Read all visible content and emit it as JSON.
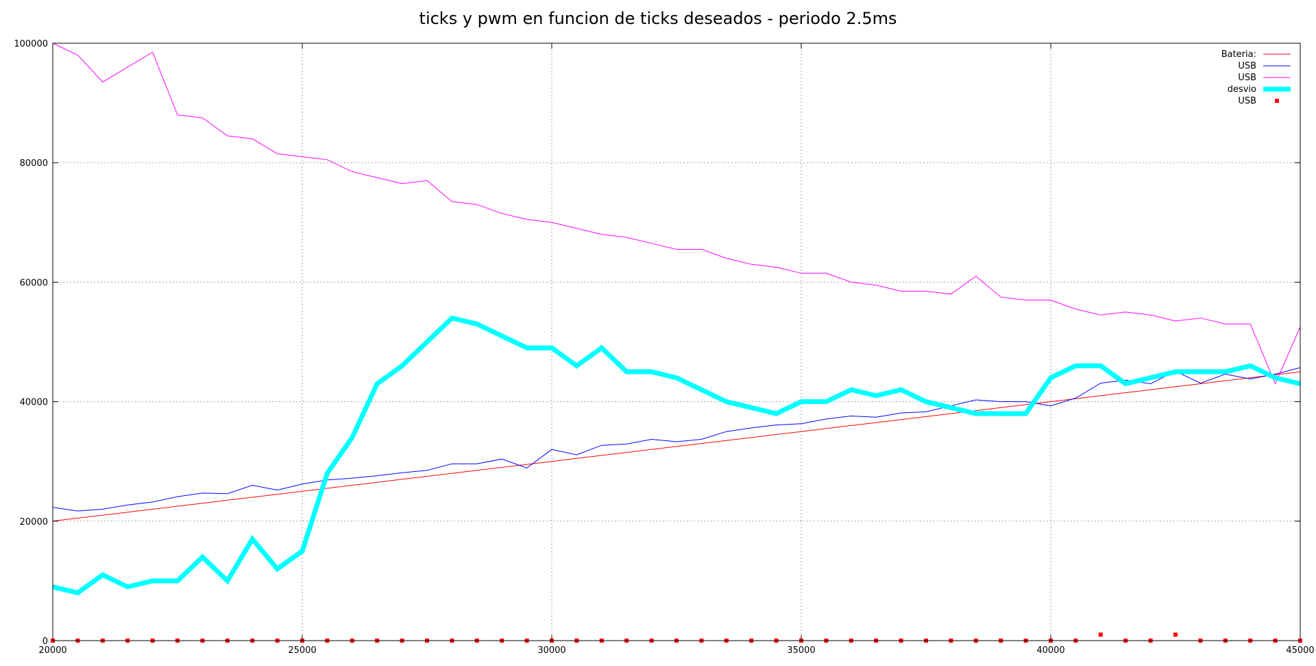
{
  "chart_data": {
    "type": "line",
    "title": "ticks y pwm en funcion de ticks deseados - periodo 2.5ms",
    "xlabel": "",
    "ylabel": "",
    "xlim": [
      20000,
      45000
    ],
    "ylim": [
      0,
      100000
    ],
    "x_ticks": [
      20000,
      25000,
      30000,
      35000,
      40000,
      45000
    ],
    "y_ticks": [
      0,
      20000,
      40000,
      60000,
      80000,
      100000
    ],
    "x_tick_labels": [
      "20000",
      "25000",
      "30000",
      "35000",
      "40000",
      "45000"
    ],
    "y_tick_labels": [
      "0",
      "20000",
      "40000",
      "60000",
      "80000",
      "100000"
    ],
    "grid": true,
    "legend_position": "top-right",
    "x": [
      20000,
      20500,
      21000,
      21500,
      22000,
      22500,
      23000,
      23500,
      24000,
      24500,
      25000,
      25500,
      26000,
      26500,
      27000,
      27500,
      28000,
      28500,
      29000,
      29500,
      30000,
      30500,
      31000,
      31500,
      32000,
      32500,
      33000,
      33500,
      34000,
      34500,
      35000,
      35500,
      36000,
      36500,
      37000,
      37500,
      38000,
      38500,
      39000,
      39500,
      40000,
      40500,
      41000,
      41500,
      42000,
      42500,
      43000,
      43500,
      44000,
      44500,
      45000
    ],
    "series": [
      {
        "name": "Bateria:",
        "style": "line",
        "color": "#ff0000",
        "width": 1,
        "values": [
          20000,
          20500,
          21000,
          21500,
          22000,
          22500,
          23000,
          23500,
          24000,
          24500,
          25000,
          25500,
          26000,
          26500,
          27000,
          27500,
          28000,
          28500,
          29000,
          29500,
          30000,
          30500,
          31000,
          31500,
          32000,
          32500,
          33000,
          33500,
          34000,
          34500,
          35000,
          35500,
          36000,
          36500,
          37000,
          37500,
          38000,
          38500,
          39000,
          39500,
          40000,
          40500,
          41000,
          41500,
          42000,
          42500,
          43000,
          43500,
          44000,
          44500,
          45000
        ]
      },
      {
        "name": "USB",
        "style": "line",
        "color": "#0000ff",
        "width": 1,
        "values": [
          22300,
          21700,
          22000,
          22700,
          23200,
          24100,
          24700,
          24600,
          26000,
          25200,
          26200,
          26900,
          27200,
          27600,
          28100,
          28500,
          29600,
          29600,
          30400,
          28900,
          32000,
          31100,
          32700,
          32900,
          33700,
          33300,
          33700,
          35000,
          35600,
          36100,
          36300,
          37100,
          37600,
          37400,
          38100,
          38300,
          39300,
          40300,
          40000,
          40000,
          39300,
          40600,
          43100,
          43600,
          43000,
          45100,
          43100,
          44600,
          43800,
          44600,
          45700
        ]
      },
      {
        "name": "USB",
        "style": "line",
        "color": "#ff00ff",
        "width": 1,
        "values": [
          100000,
          98000,
          93500,
          96000,
          98500,
          88000,
          87500,
          84500,
          84000,
          81500,
          81000,
          80500,
          78500,
          77500,
          76500,
          77000,
          73500,
          73000,
          71500,
          70500,
          70000,
          69000,
          68000,
          67500,
          66500,
          65500,
          65500,
          64000,
          63000,
          62500,
          61500,
          61500,
          60000,
          59500,
          58500,
          58500,
          58000,
          61000,
          57500,
          57000,
          57000,
          55500,
          54500,
          55000,
          54500,
          53500,
          54000,
          53000,
          53000,
          43000,
          52500
        ]
      },
      {
        "name": "desvio",
        "style": "line",
        "color": "#00ffff",
        "width": 7,
        "values": [
          9000,
          8000,
          11000,
          9000,
          10000,
          10000,
          14000,
          10000,
          17000,
          12000,
          15000,
          28000,
          34000,
          43000,
          46000,
          50000,
          54000,
          53000,
          51000,
          49000,
          49000,
          46000,
          49000,
          45000,
          45000,
          44000,
          42000,
          40000,
          39000,
          38000,
          40000,
          40000,
          42000,
          41000,
          42000,
          40000,
          39000,
          38000,
          38000,
          38000,
          44000,
          46000,
          46000,
          43000,
          44000,
          45000,
          45000,
          45000,
          46000,
          44000,
          43000
        ]
      },
      {
        "name": "USB",
        "style": "points",
        "color": "#ff0000",
        "width": 1,
        "values": [
          0,
          0,
          0,
          0,
          0,
          0,
          0,
          0,
          0,
          0,
          0,
          0,
          0,
          0,
          0,
          0,
          0,
          0,
          0,
          0,
          0,
          0,
          0,
          0,
          0,
          0,
          0,
          0,
          0,
          0,
          0,
          0,
          0,
          0,
          0,
          0,
          0,
          0,
          0,
          0,
          0,
          0,
          1000,
          0,
          0,
          1000,
          0,
          0,
          0,
          0,
          0
        ]
      }
    ]
  }
}
